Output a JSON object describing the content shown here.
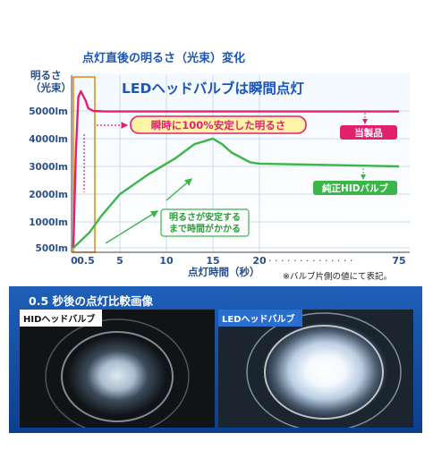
{
  "chart_title": "点灯直後の明るさ（光束）変化",
  "chart_data": {
    "type": "line",
    "title": "LEDヘッドバルブは瞬間点灯",
    "ylabel": [
      "明るさ",
      "（光束）"
    ],
    "xlabel": "点灯時間（秒）",
    "x_ticks": [
      "0",
      "0.5",
      "5",
      "10",
      "15",
      "20",
      "75"
    ],
    "y_ticks": [
      "5000lm",
      "4000lm",
      "3000lm",
      "2000lm",
      "1000lm",
      "500lm"
    ],
    "ylim": [
      500,
      5600
    ],
    "grid": true,
    "series": [
      {
        "name": "当製品",
        "color": "#e0226e",
        "x": [
          0,
          0.1,
          0.2,
          0.3,
          0.5,
          0.8,
          1.5,
          3,
          20,
          75
        ],
        "y": [
          500,
          3500,
          5500,
          5700,
          5350,
          5100,
          5000,
          4980,
          4980,
          4980
        ]
      },
      {
        "name": "純正HIDバルブ",
        "color": "#3cb54a",
        "x": [
          0,
          1,
          2.5,
          5,
          8,
          11,
          13,
          15,
          16,
          17,
          19,
          20,
          75
        ],
        "y": [
          500,
          800,
          1200,
          2000,
          2700,
          3300,
          3800,
          4000,
          3800,
          3500,
          3150,
          3100,
          3000
        ]
      }
    ],
    "annotations": [
      {
        "text": "瞬時に100%安定した明るさ",
        "box_color": "#fff3a8",
        "border_color": "#e0226e",
        "text_color": "#e0226e"
      },
      {
        "text": [
          "明るさが安定する",
          "まで時間がかかる"
        ],
        "box_color": "#ffffff",
        "border_color": "#3cb54a",
        "text_color": "#2a9b3a"
      }
    ],
    "note": "※バルブ片側の値にて表記。"
  },
  "comparison": {
    "title": "0.5 秒後の点灯比較画像",
    "images": [
      {
        "label": "HIDヘッドバルブ"
      },
      {
        "label": "LEDヘッドバルブ"
      }
    ]
  }
}
